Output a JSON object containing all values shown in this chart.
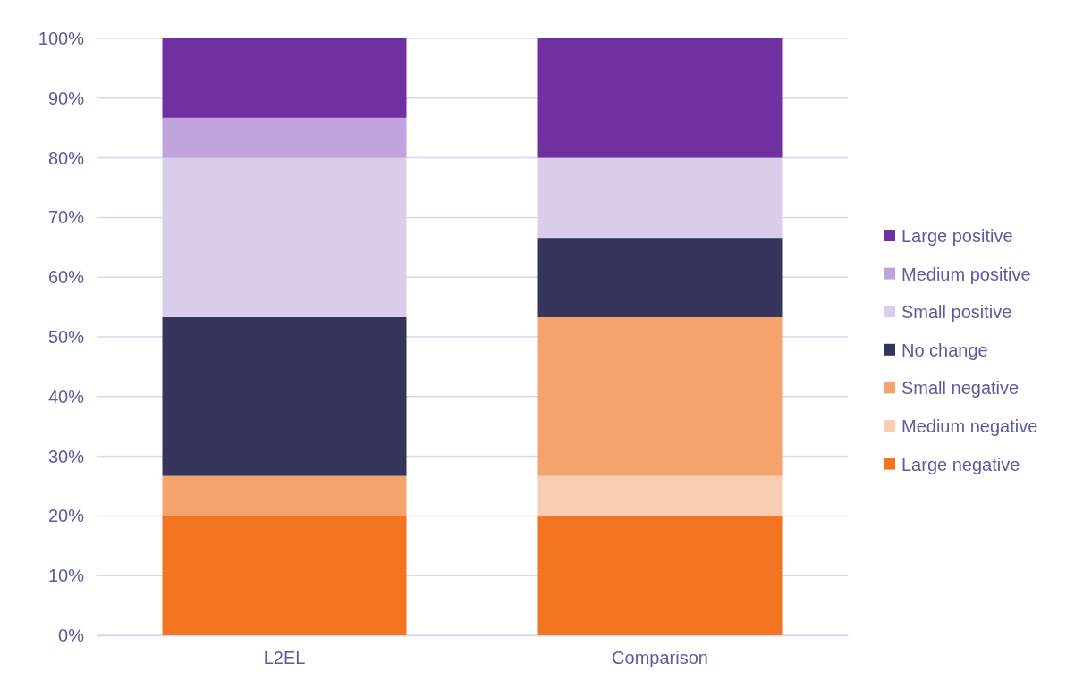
{
  "chart_data": {
    "type": "bar",
    "stacked": true,
    "categories": [
      "L2EL",
      "Comparison"
    ],
    "series": [
      {
        "name": "Large negative",
        "color": "#f47521",
        "values": [
          20,
          20
        ]
      },
      {
        "name": "Medium negative",
        "color": "#f9cdb1",
        "values": [
          0,
          6.7
        ]
      },
      {
        "name": "Small negative",
        "color": "#f4a36c",
        "values": [
          6.7,
          26.6
        ]
      },
      {
        "name": "No change",
        "color": "#35345a",
        "values": [
          26.6,
          13.3
        ]
      },
      {
        "name": "Small positive",
        "color": "#dacdec",
        "values": [
          26.7,
          13.4
        ]
      },
      {
        "name": "Medium positive",
        "color": "#c0a2dc",
        "values": [
          6.7,
          0
        ]
      },
      {
        "name": "Large positive",
        "color": "#7030a0",
        "values": [
          13.3,
          20
        ]
      }
    ],
    "ylim": [
      0,
      100
    ],
    "yticks": [
      {
        "value": 0,
        "label": "0%"
      },
      {
        "value": 10,
        "label": "10%"
      },
      {
        "value": 20,
        "label": "20%"
      },
      {
        "value": 30,
        "label": "30%"
      },
      {
        "value": 40,
        "label": "40%"
      },
      {
        "value": 50,
        "label": "50%"
      },
      {
        "value": 60,
        "label": "60%"
      },
      {
        "value": 70,
        "label": "70%"
      },
      {
        "value": 80,
        "label": "80%"
      },
      {
        "value": 90,
        "label": "90%"
      },
      {
        "value": 100,
        "label": "100%"
      }
    ],
    "grid": "y",
    "legend": "right"
  }
}
